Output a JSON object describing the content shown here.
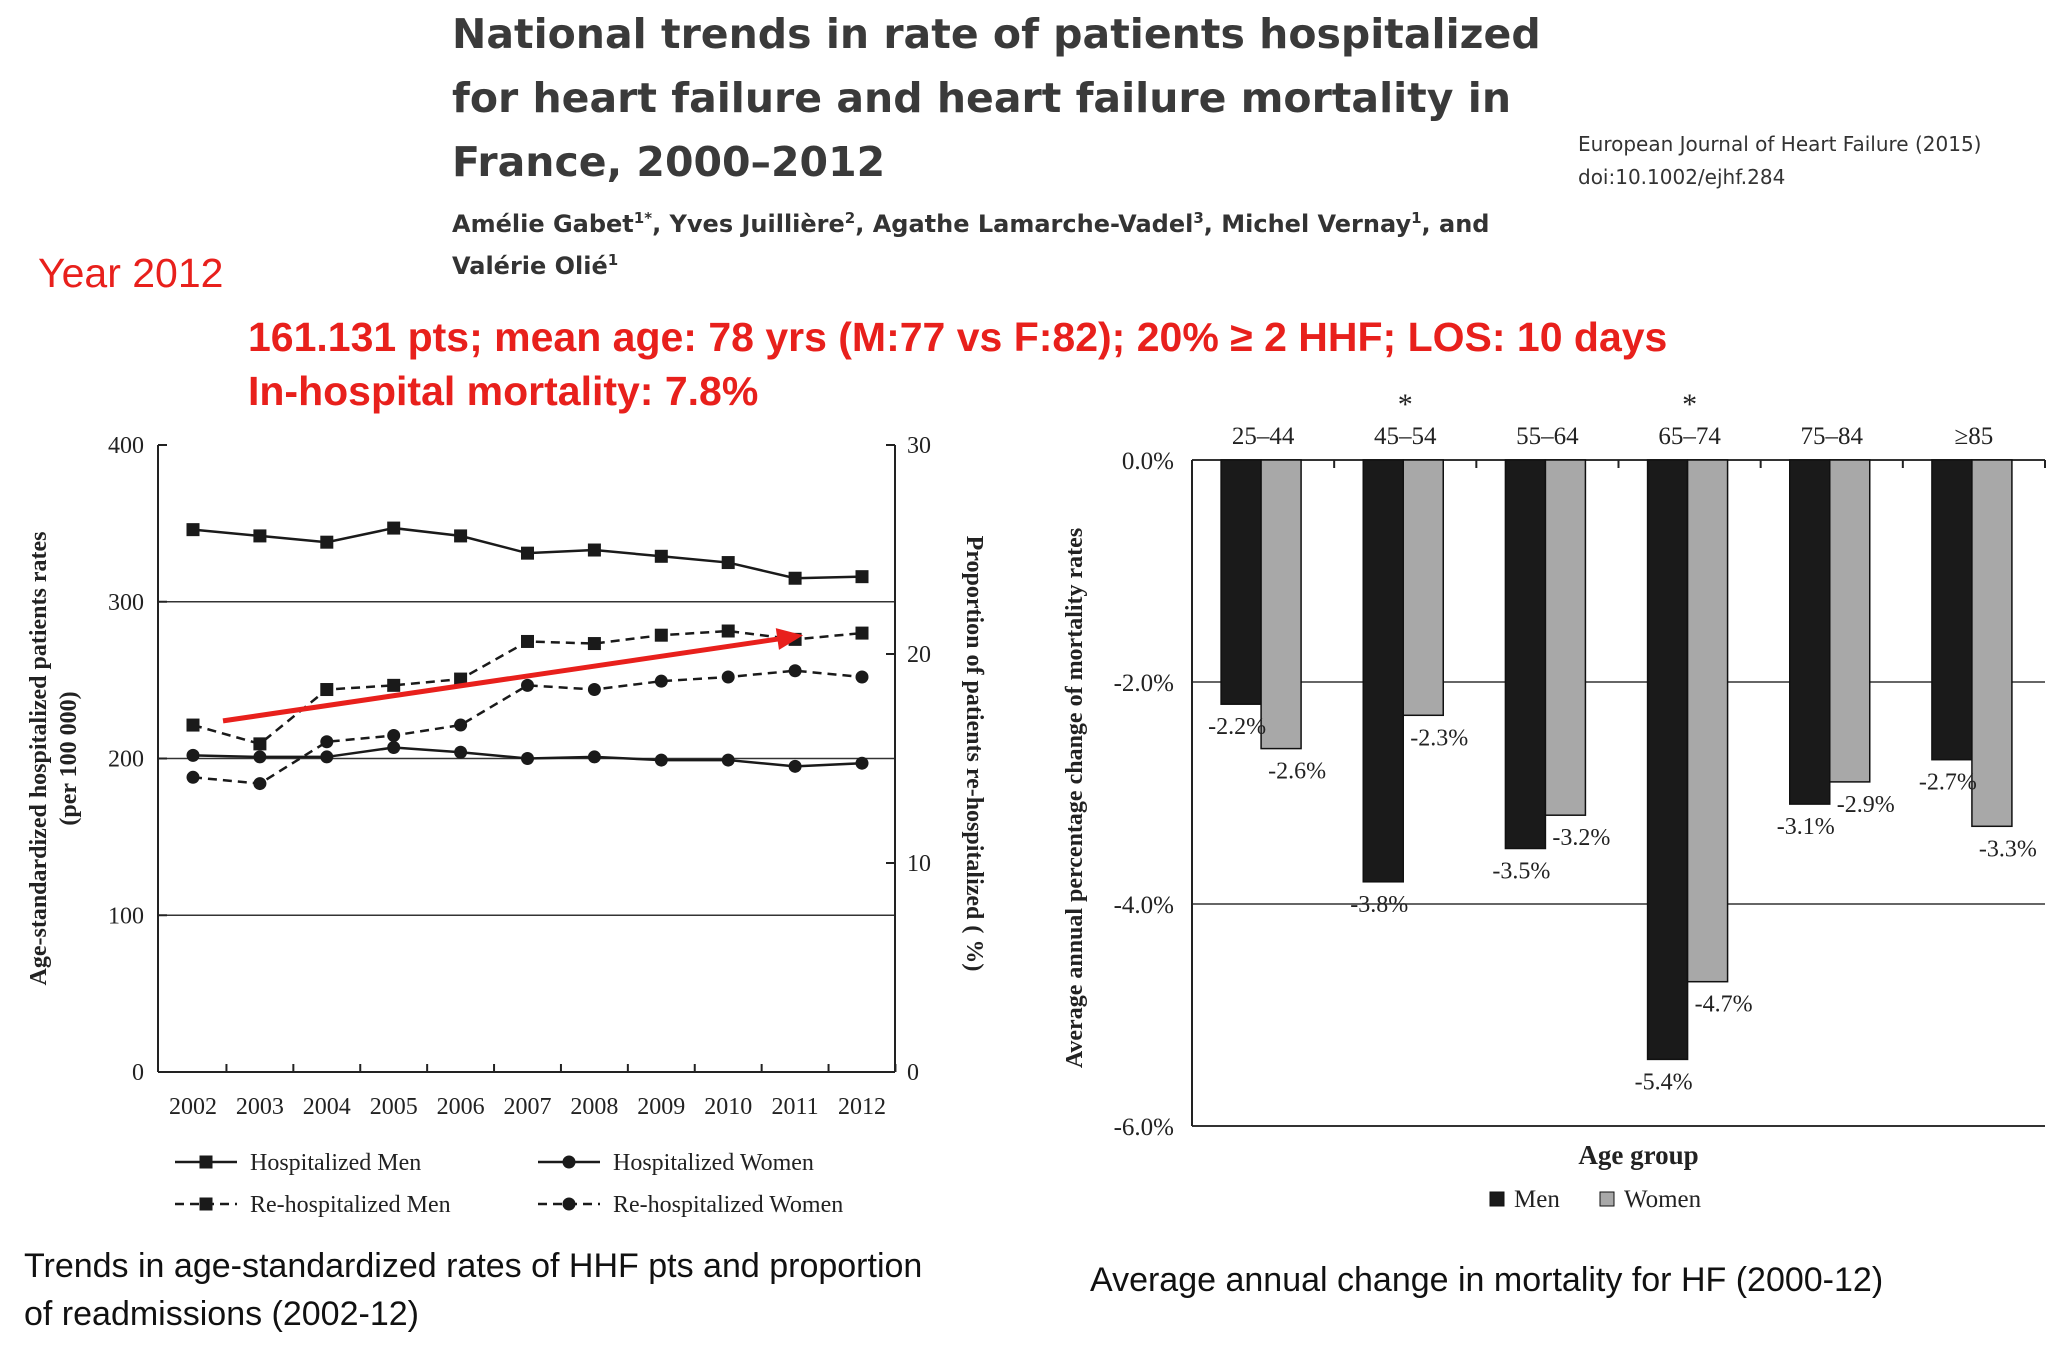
{
  "paper": {
    "title_lines": [
      "National trends in rate of patients hospitalized",
      "for heart failure and heart failure mortality in",
      "France, 2000–2012"
    ],
    "authors_line1": {
      "a1": "Amélie Gabet",
      "a1_sup": "1*",
      "a2": ", Yves Juillière",
      "a2_sup": "2",
      "a3": ", Agathe Lamarche-Vadel",
      "a3_sup": "3",
      "a4": ", Michel Vernay",
      "a4_sup": "1",
      "a5": ", and"
    },
    "authors_line2": {
      "a6": "Valérie Olié",
      "a6_sup": "1"
    },
    "journal": "European Journal of Heart Failure (2015)",
    "doi": "doi:10.1002/ejhf.284"
  },
  "highlight": {
    "year_label": "Year 2012",
    "summary_line1": "161.131 pts; mean age: 78 yrs (M:77 vs F:82); 20% ≥ 2 HHF; LOS: 10 days",
    "summary_line2": "In-hospital mortality: 7.8%"
  },
  "colors": {
    "highlight": "#e8201c",
    "men_bar": "#1a1a1a",
    "women_bar": "#a8a8a8",
    "trend_arrow": "#e8201c"
  },
  "captions": {
    "left": "Trends in age-standardized rates of HHF pts and proportion of readmissions (2002-12)",
    "right": "Average annual change in mortality for HF (2000-12)"
  },
  "chart_data": [
    {
      "type": "line",
      "title": "",
      "x": [
        2002,
        2003,
        2004,
        2005,
        2006,
        2007,
        2008,
        2009,
        2010,
        2011,
        2012
      ],
      "ylabel": "Age-standardized hospitalized patients rates (per 100 000)",
      "y2label": "Proportion of patients re-hospitalized ( %)",
      "ylim": [
        0,
        400
      ],
      "yticks": [
        0,
        100,
        200,
        300,
        400
      ],
      "y2lim": [
        0,
        30
      ],
      "y2ticks": [
        0,
        10,
        20,
        30
      ],
      "grid": "horizontal at 100, 200, 300",
      "legend_position": "bottom",
      "series": [
        {
          "name": "Hospitalized Men",
          "axis": "left",
          "style": "solid",
          "marker": "square",
          "values": [
            346,
            342,
            338,
            347,
            342,
            331,
            333,
            329,
            325,
            315,
            316
          ]
        },
        {
          "name": "Hospitalized Women",
          "axis": "left",
          "style": "solid",
          "marker": "circle",
          "values": [
            202,
            201,
            201,
            207,
            204,
            200,
            201,
            199,
            199,
            195,
            197
          ]
        },
        {
          "name": "Re-hospitalized Men",
          "axis": "right",
          "style": "dashed",
          "marker": "square",
          "values": [
            16.6,
            15.7,
            18.3,
            18.5,
            18.8,
            20.6,
            20.5,
            20.9,
            21.1,
            20.7,
            21.0
          ]
        },
        {
          "name": "Re-hospitalized Women",
          "axis": "right",
          "style": "dashed",
          "marker": "circle",
          "values": [
            14.1,
            13.8,
            15.8,
            16.1,
            16.6,
            18.5,
            18.3,
            18.7,
            18.9,
            19.2,
            18.9
          ]
        }
      ]
    },
    {
      "type": "bar",
      "title": "",
      "xlabel": "Age group",
      "ylabel": "Average annual percentage change  of mortality rates",
      "categories": [
        "25–44",
        "45–54",
        "55–64",
        "65–74",
        "75–84",
        "≥85"
      ],
      "significance": [
        "",
        "*",
        "",
        "*",
        "",
        ""
      ],
      "ylim": [
        -6.0,
        0.0
      ],
      "yticks": [
        0.0,
        -2.0,
        -4.0,
        -6.0
      ],
      "ytick_labels": [
        "0.0%",
        "-2.0%",
        "-4.0%",
        "-6.0%"
      ],
      "grid": "horizontal at 0, -2, -4, -6",
      "legend_position": "bottom",
      "series": [
        {
          "name": "Men",
          "values": [
            -2.2,
            -3.8,
            -3.5,
            -5.4,
            -3.1,
            -2.7
          ],
          "labels": [
            "-2.2%",
            "-3.8%",
            "-3.5%",
            "-5.4%",
            "-3.1%",
            "-2.7%"
          ]
        },
        {
          "name": "Women",
          "values": [
            -2.6,
            -2.3,
            -3.2,
            -4.7,
            -2.9,
            -3.3
          ],
          "labels": [
            "-2.6%",
            "-2.3%",
            "-3.2%",
            "-4.7%",
            "-2.9%",
            "-3.3%"
          ]
        }
      ]
    }
  ]
}
